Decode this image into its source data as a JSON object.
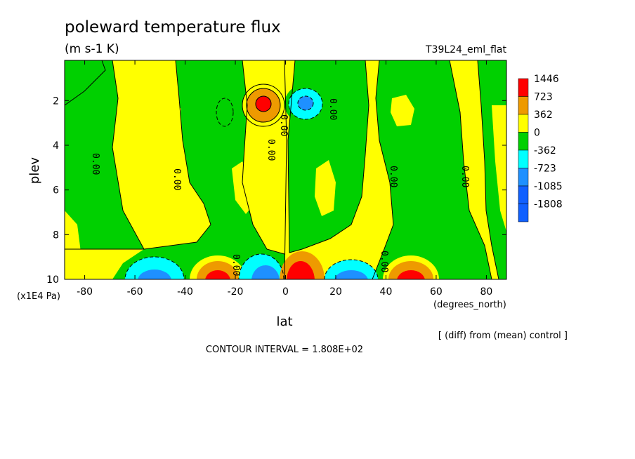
{
  "chart_data": {
    "type": "heatmap",
    "title": "poleward temperature flux",
    "subtitle": "(m s-1 K)",
    "run_label": "T39L24_eml_flat",
    "xlabel": "lat",
    "x_units": "(degrees_north)",
    "ylabel": "plev",
    "y_units": "(x1E4 Pa)",
    "xlim": [
      -88,
      88
    ],
    "ylim": [
      10,
      0.2
    ],
    "xticks": [
      "-80",
      "-60",
      "-40",
      "-20",
      "0",
      "20",
      "40",
      "60",
      "80"
    ],
    "yticks": [
      "2",
      "4",
      "6",
      "8",
      "10"
    ],
    "note": "[ (diff) from (mean) control ]",
    "contour_interval": "CONTOUR INTERVAL = 1.808E+02",
    "zero_contour_label": "0.00",
    "legend": {
      "labels": [
        "1446",
        "723",
        "362",
        "0",
        "-362",
        "-723",
        "-1085",
        "-1808"
      ],
      "colors": [
        "#ff0000",
        "#ee9a00",
        "#ffff00",
        "#00d000",
        "#00ffff",
        "#1e90ff",
        "#1060ff",
        "#1060ff"
      ]
    },
    "features": [
      {
        "lat": -9,
        "plev": 2.0,
        "value": 1446
      },
      {
        "lat": 9,
        "plev": 2.0,
        "value": -1085
      },
      {
        "lat": -28,
        "plev": 9.8,
        "value": 1446
      },
      {
        "lat": -50,
        "plev": 9.8,
        "value": -723
      },
      {
        "lat": -10,
        "plev": 9.7,
        "value": -1085
      },
      {
        "lat": 8,
        "plev": 9.7,
        "value": 1446
      },
      {
        "lat": 28,
        "plev": 9.8,
        "value": -723
      },
      {
        "lat": 49,
        "plev": 9.8,
        "value": 1446
      }
    ]
  }
}
